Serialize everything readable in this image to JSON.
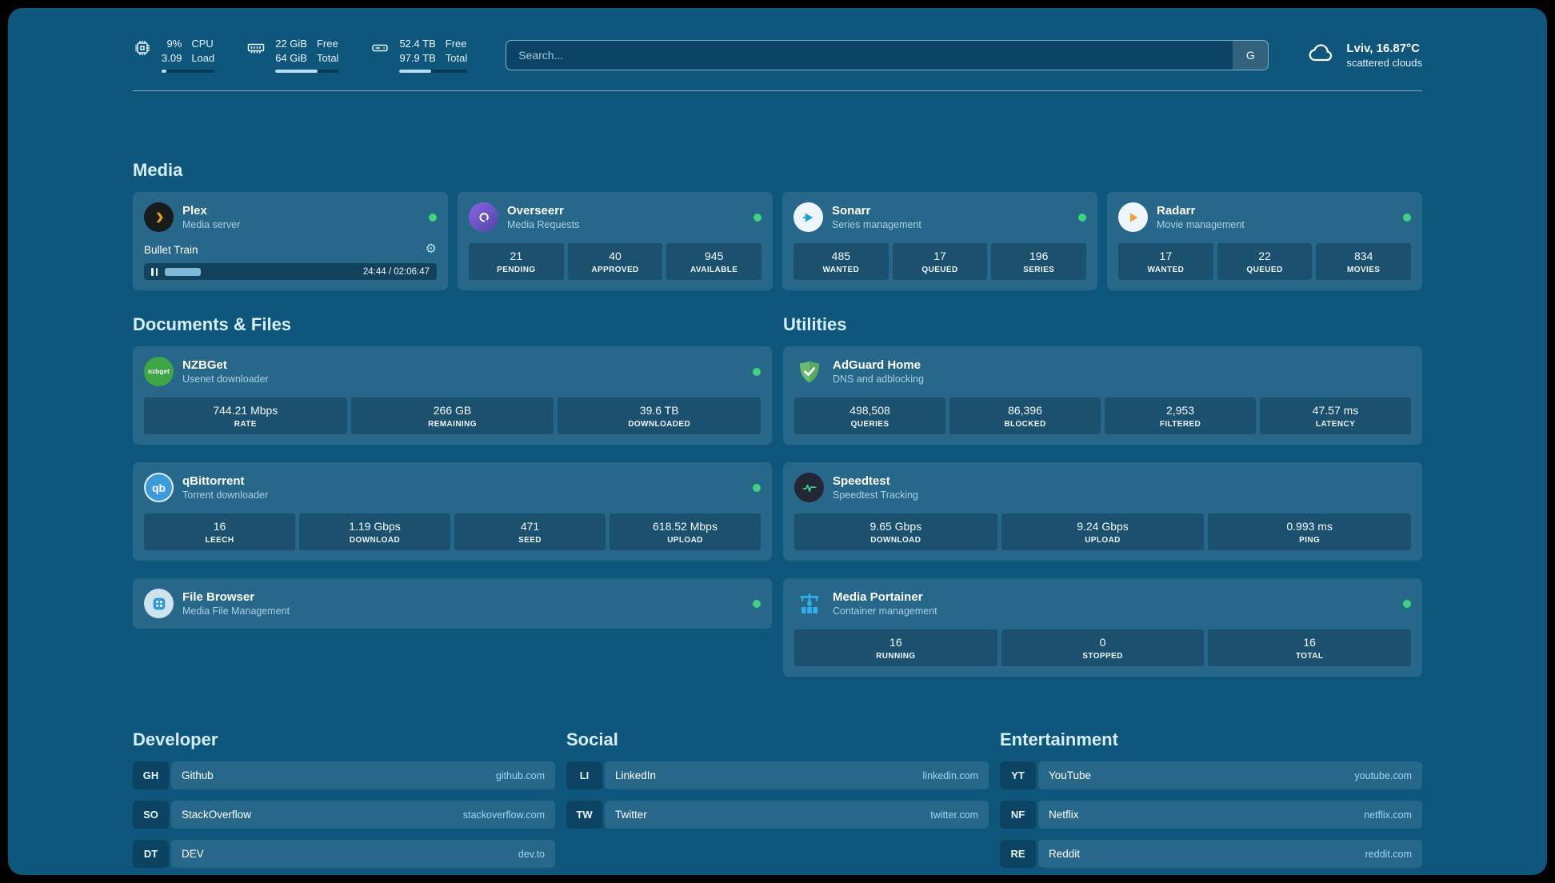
{
  "theme": {
    "background": "#0f567d",
    "card": "rgba(255,255,255,0.10)",
    "status_online": "#3ed37c",
    "heading_text": "#d6edfa",
    "link_text": "#9ed6f5",
    "plex_brand": "#e5a00d",
    "adguard_brand": "#68bc71",
    "portainer_brand": "#2fb0e8"
  },
  "topbar": {
    "system_stats": [
      {
        "icon": "cpu-icon",
        "value_primary": "9%",
        "value_secondary": "3.09",
        "label_primary": "CPU",
        "label_secondary": "Load",
        "progress_percent": 9
      },
      {
        "icon": "memory-icon",
        "value_primary": "22 GiB",
        "value_secondary": "64 GiB",
        "label_primary": "Free",
        "label_secondary": "Total",
        "progress_percent": 66
      },
      {
        "icon": "disk-icon",
        "value_primary": "52.4 TB",
        "value_secondary": "97.9 TB",
        "label_primary": "Free",
        "label_secondary": "Total",
        "progress_percent": 47
      }
    ],
    "search": {
      "placeholder": "Search...",
      "engine_button": "G"
    },
    "weather": {
      "icon": "cloud-icon",
      "location": "Lviv, 16.87°C",
      "condition": "scattered clouds"
    }
  },
  "media": {
    "title": "Media",
    "plex": {
      "name": "Plex",
      "description": "Media server",
      "status": "online",
      "now_playing": {
        "title": "Bullet Train",
        "time": "24:44 / 02:06:47",
        "progress_percent": 19
      }
    },
    "overseerr": {
      "name": "Overseerr",
      "description": "Media Requests",
      "status": "online",
      "stats": [
        {
          "value": "21",
          "label": "PENDING"
        },
        {
          "value": "40",
          "label": "APPROVED"
        },
        {
          "value": "945",
          "label": "AVAILABLE"
        }
      ]
    },
    "sonarr": {
      "name": "Sonarr",
      "description": "Series management",
      "status": "online",
      "stats": [
        {
          "value": "485",
          "label": "WANTED"
        },
        {
          "value": "17",
          "label": "QUEUED"
        },
        {
          "value": "196",
          "label": "SERIES"
        }
      ]
    },
    "radarr": {
      "name": "Radarr",
      "description": "Movie management",
      "status": "online",
      "stats": [
        {
          "value": "17",
          "label": "WANTED"
        },
        {
          "value": "22",
          "label": "QUEUED"
        },
        {
          "value": "834",
          "label": "MOVIES"
        }
      ]
    }
  },
  "documents": {
    "title": "Documents & Files",
    "nzbget": {
      "name": "NZBGet",
      "description": "Usenet downloader",
      "icon_text": "nzbget",
      "status": "online",
      "stats": [
        {
          "value": "744.21 Mbps",
          "label": "RATE"
        },
        {
          "value": "266 GB",
          "label": "REMAINING"
        },
        {
          "value": "39.6 TB",
          "label": "DOWNLOADED"
        }
      ]
    },
    "qbittorrent": {
      "name": "qBittorrent",
      "description": "Torrent downloader",
      "icon_text": "qb",
      "status": "online",
      "stats": [
        {
          "value": "16",
          "label": "LEECH"
        },
        {
          "value": "1.19 Gbps",
          "label": "DOWNLOAD"
        },
        {
          "value": "471",
          "label": "SEED"
        },
        {
          "value": "618.52 Mbps",
          "label": "UPLOAD"
        }
      ]
    },
    "filebrowser": {
      "name": "File Browser",
      "description": "Media File Management",
      "status": "online"
    }
  },
  "utilities": {
    "title": "Utilities",
    "adguard": {
      "name": "AdGuard Home",
      "description": "DNS and adblocking",
      "stats": [
        {
          "value": "498,508",
          "label": "QUERIES"
        },
        {
          "value": "86,396",
          "label": "BLOCKED"
        },
        {
          "value": "2,953",
          "label": "FILTERED"
        },
        {
          "value": "47.57 ms",
          "label": "LATENCY"
        }
      ]
    },
    "speedtest": {
      "name": "Speedtest",
      "description": "Speedtest Tracking",
      "stats": [
        {
          "value": "9.65 Gbps",
          "label": "DOWNLOAD"
        },
        {
          "value": "9.24 Gbps",
          "label": "UPLOAD"
        },
        {
          "value": "0.993 ms",
          "label": "PING"
        }
      ]
    },
    "portainer": {
      "name": "Media Portainer",
      "description": "Container management",
      "status": "online",
      "stats": [
        {
          "value": "16",
          "label": "RUNNING"
        },
        {
          "value": "0",
          "label": "STOPPED"
        },
        {
          "value": "16",
          "label": "TOTAL"
        }
      ]
    }
  },
  "bookmarks": [
    {
      "title": "Developer",
      "items": [
        {
          "abbr": "GH",
          "name": "Github",
          "url": "github.com"
        },
        {
          "abbr": "SO",
          "name": "StackOverflow",
          "url": "stackoverflow.com"
        },
        {
          "abbr": "DT",
          "name": "DEV",
          "url": "dev.to"
        }
      ]
    },
    {
      "title": "Social",
      "items": [
        {
          "abbr": "LI",
          "name": "LinkedIn",
          "url": "linkedin.com"
        },
        {
          "abbr": "TW",
          "name": "Twitter",
          "url": "twitter.com"
        }
      ]
    },
    {
      "title": "Entertainment",
      "items": [
        {
          "abbr": "YT",
          "name": "YouTube",
          "url": "youtube.com"
        },
        {
          "abbr": "NF",
          "name": "Netflix",
          "url": "netflix.com"
        },
        {
          "abbr": "RE",
          "name": "Reddit",
          "url": "reddit.com"
        }
      ]
    }
  ]
}
